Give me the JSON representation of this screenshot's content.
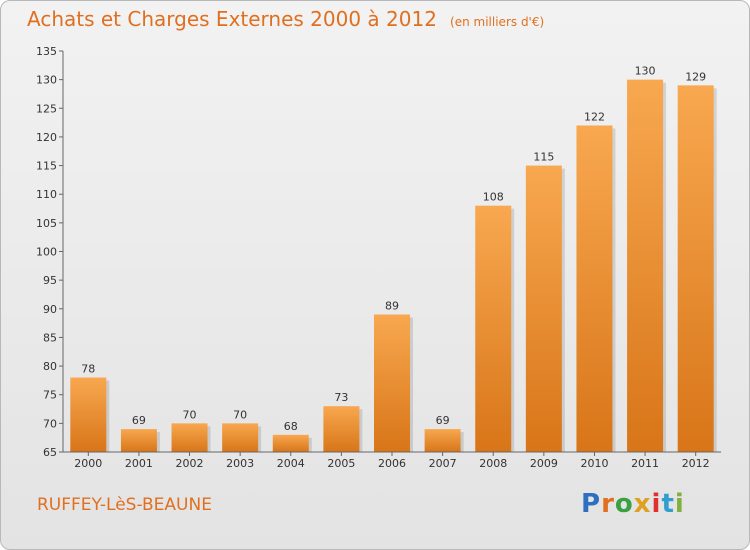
{
  "title": "Achats et Charges Externes 2000 à 2012",
  "subtitle": "(en milliers d'€)",
  "commune": "RUFFEY-LèS-BEAUNE",
  "logo": {
    "text": "Proxiti",
    "letter_colors": [
      "#2f6fbf",
      "#e07020",
      "#3aa040",
      "#e0a020",
      "#e03030",
      "#2f9fd0",
      "#80b040"
    ]
  },
  "chart_data": {
    "type": "bar",
    "categories": [
      "2000",
      "2001",
      "2002",
      "2003",
      "2004",
      "2005",
      "2006",
      "2007",
      "2008",
      "2009",
      "2010",
      "2011",
      "2012"
    ],
    "values": [
      78,
      69,
      70,
      70,
      68,
      73,
      89,
      69,
      108,
      115,
      122,
      130,
      129
    ],
    "ylim": [
      65,
      135
    ],
    "yticks": [
      65,
      70,
      75,
      80,
      85,
      90,
      95,
      100,
      105,
      110,
      115,
      120,
      125,
      130,
      135
    ],
    "grid": false,
    "bar_color_top": "#f8a850",
    "bar_color_bottom": "#d87518"
  }
}
